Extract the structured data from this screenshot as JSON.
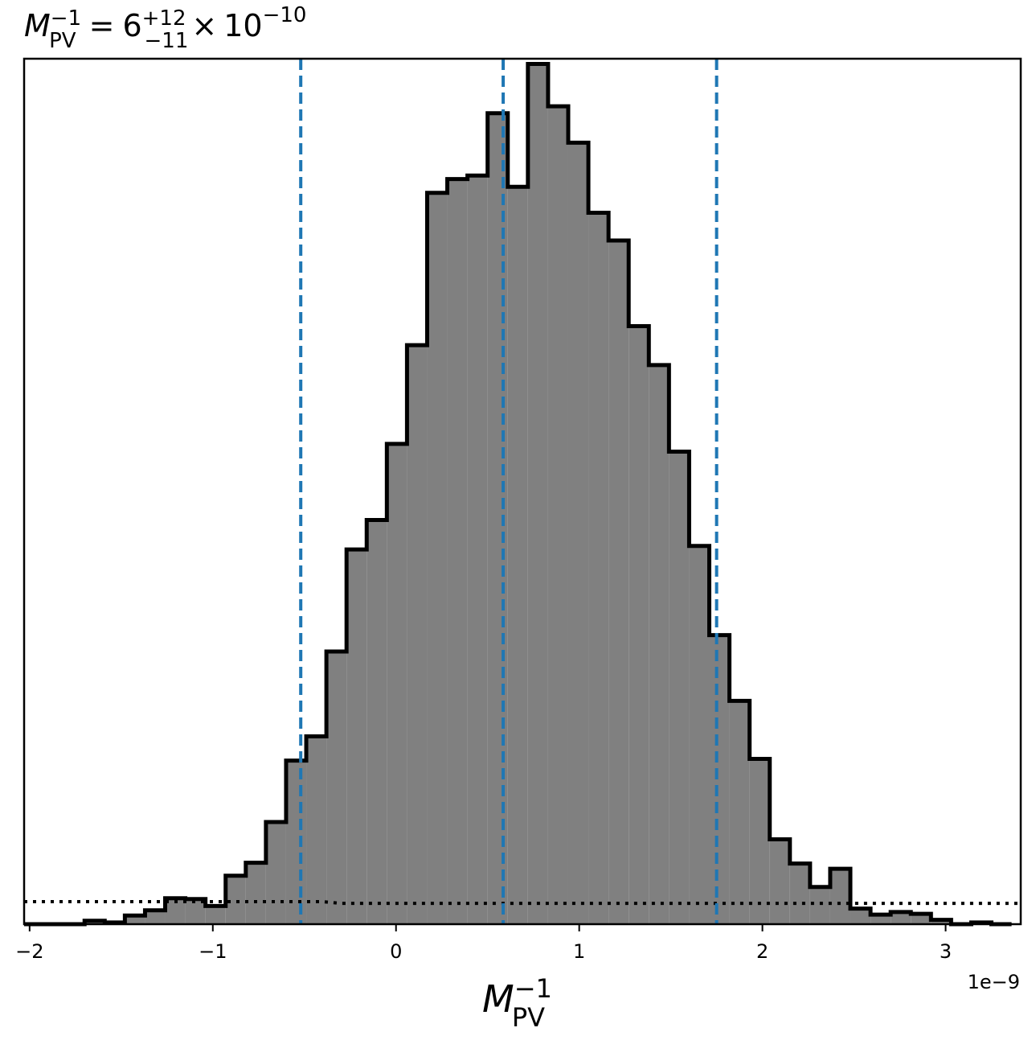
{
  "chart_data": {
    "type": "histogram",
    "title": {
      "base": "M",
      "base_sub": "PV",
      "base_sup": "−1",
      "equals": "=",
      "mantissa": "6",
      "err_plus": "+12",
      "err_minus": "−11",
      "times": "×",
      "power_base": "10",
      "exponent": "−10"
    },
    "xlabel": {
      "base": "M",
      "sub": "PV",
      "sup": "−1"
    },
    "x_offset_label": "1e−9",
    "xlim": [
      -2.03,
      3.41
    ],
    "ylim": [
      0,
      1000
    ],
    "xticks": [
      {
        "value": -2,
        "label": "−2"
      },
      {
        "value": -1,
        "label": "−1"
      },
      {
        "value": 0,
        "label": "0"
      },
      {
        "value": 1,
        "label": "1"
      },
      {
        "value": 2,
        "label": "2"
      },
      {
        "value": 3,
        "label": "3"
      }
    ],
    "bin_edges": [
      -2.03,
      -1.92,
      -1.81,
      -1.7,
      -1.59,
      -1.48,
      -1.37,
      -1.26,
      -1.15,
      -1.04,
      -0.93,
      -0.82,
      -0.71,
      -0.6,
      -0.49,
      -0.38,
      -0.27,
      -0.16,
      -0.05,
      0.06,
      0.17,
      0.28,
      0.39,
      0.5,
      0.61,
      0.72,
      0.83,
      0.94,
      1.05,
      1.16,
      1.27,
      1.38,
      1.49,
      1.6,
      1.71,
      1.82,
      1.93,
      2.04,
      2.15,
      2.26,
      2.37,
      2.48,
      2.59,
      2.7,
      2.81,
      2.92,
      3.03,
      3.14,
      3.25,
      3.36
    ],
    "counts": [
      0,
      0,
      0,
      4,
      2,
      10,
      16,
      30,
      29,
      21,
      56,
      71,
      118,
      189,
      217,
      315,
      433,
      467,
      555,
      669,
      845,
      861,
      865,
      937,
      852,
      994,
      945,
      903,
      822,
      790,
      691,
      646,
      546,
      437,
      334,
      258,
      191,
      98,
      70,
      43,
      64,
      18,
      11,
      14,
      12,
      5,
      0,
      2,
      0
    ],
    "fill_color": "#808080",
    "edge_color": "#000000",
    "quantiles": {
      "values": [
        -0.52,
        0.585,
        1.75
      ],
      "color": "#1f77b4",
      "style": "dashed"
    },
    "prior_line": {
      "style": "dotted",
      "color": "#000000",
      "level_left": 26,
      "level_right": 24
    },
    "grid": false
  }
}
